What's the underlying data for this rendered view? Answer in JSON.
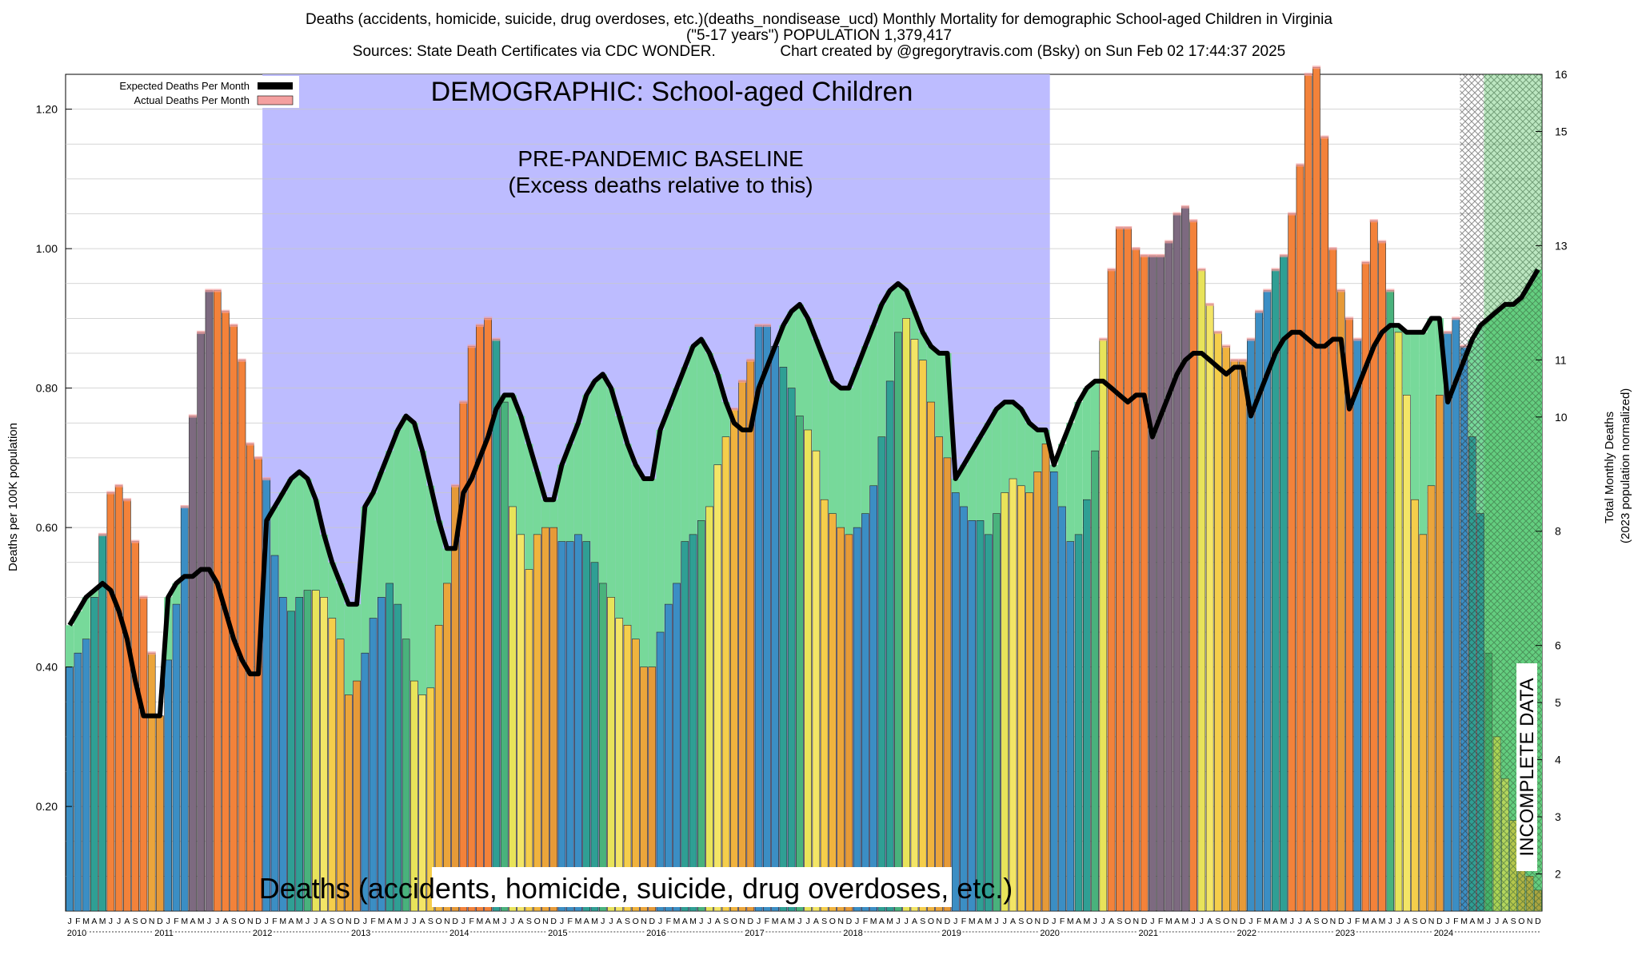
{
  "header": {
    "line1": "Deaths (accidents, homicide, suicide, drug overdoses, etc.)(deaths_nondisease_ucd) Monthly Mortality for demographic School-aged Children in Virginia",
    "line2": "(\"5-17 years\") POPULATION 1,379,417",
    "line3_left": "Sources: State Death Certificates via CDC WONDER.",
    "line3_right": "Chart created by @gregorytravis.com (Bsky) on Sun Feb 02 17:44:37 2025"
  },
  "chart_data": {
    "type": "bar",
    "title": "Deaths (accidents, homicide, suicide, drug overdoses, etc.)(deaths_nondisease_ucd) Monthly Mortality for demographic School-aged Children in Virginia",
    "ylabel": "Deaths per 100K population",
    "y2label": "Total Monthly Deaths",
    "y2label_sub": "(2023 population normalized)",
    "ylim": [
      0.05,
      1.25
    ],
    "y2lim": [
      1.35,
      16.0
    ],
    "y_ticks": [
      "0.20",
      "0.40",
      "0.60",
      "0.80",
      "1.00",
      "1.20"
    ],
    "y_tick_values": [
      0.2,
      0.4,
      0.6,
      0.8,
      1.0,
      1.2
    ],
    "y2_ticks": [
      "2",
      "3",
      "4",
      "5",
      "6",
      "8",
      "10",
      "11",
      "13",
      "15",
      "16"
    ],
    "y2_tick_values": [
      2,
      3,
      4,
      5,
      6,
      8,
      10,
      11,
      13,
      15,
      16
    ],
    "month_letters": [
      "J",
      "F",
      "M",
      "A",
      "M",
      "J",
      "J",
      "A",
      "S",
      "O",
      "N",
      "D"
    ],
    "years": [
      "2010",
      "2011",
      "2012",
      "2013",
      "2014",
      "2015",
      "2016",
      "2017",
      "2018",
      "2019",
      "2020",
      "2021",
      "2022",
      "2023",
      "2024"
    ],
    "legend": [
      "Expected Deaths Per Month",
      "Actual Deaths Per Month"
    ],
    "baseline_label": "DEMOGRAPHIC: School-aged Children",
    "baseline_title": "PRE-PANDEMIC BASELINE",
    "baseline_sub": "(Excess deaths relative to this)",
    "baseline_years": [
      "2012",
      "2019"
    ],
    "incomplete_label": "INCOMPLETE DATA",
    "incomplete_from": "2024-03",
    "bottom_caption": "Deaths (accidents, homicide, suicide, drug overdoses, etc.)",
    "actual": [
      0.4,
      0.42,
      0.44,
      0.5,
      0.59,
      0.65,
      0.66,
      0.64,
      0.58,
      0.5,
      0.42,
      0.33,
      0.41,
      0.49,
      0.63,
      0.76,
      0.88,
      0.94,
      0.94,
      0.91,
      0.89,
      0.84,
      0.72,
      0.7,
      0.67,
      0.56,
      0.5,
      0.48,
      0.5,
      0.51,
      0.51,
      0.5,
      0.47,
      0.44,
      0.36,
      0.38,
      0.42,
      0.47,
      0.5,
      0.52,
      0.49,
      0.44,
      0.38,
      0.36,
      0.37,
      0.46,
      0.52,
      0.66,
      0.78,
      0.86,
      0.89,
      0.9,
      0.87,
      0.78,
      0.63,
      0.59,
      0.54,
      0.59,
      0.6,
      0.6,
      0.58,
      0.58,
      0.59,
      0.58,
      0.55,
      0.52,
      0.5,
      0.47,
      0.46,
      0.44,
      0.4,
      0.4,
      0.45,
      0.49,
      0.52,
      0.58,
      0.59,
      0.61,
      0.63,
      0.69,
      0.73,
      0.77,
      0.81,
      0.84,
      0.89,
      0.89,
      0.86,
      0.83,
      0.8,
      0.76,
      0.74,
      0.71,
      0.64,
      0.62,
      0.6,
      0.59,
      0.6,
      0.62,
      0.66,
      0.73,
      0.81,
      0.88,
      0.9,
      0.87,
      0.84,
      0.78,
      0.73,
      0.7,
      0.65,
      0.63,
      0.61,
      0.61,
      0.59,
      0.62,
      0.65,
      0.67,
      0.66,
      0.65,
      0.68,
      0.72,
      0.68,
      0.63,
      0.58,
      0.59,
      0.64,
      0.71,
      0.87,
      0.97,
      1.03,
      1.03,
      1.0,
      0.99,
      0.99,
      0.99,
      1.01,
      1.05,
      1.06,
      1.04,
      0.97,
      0.92,
      0.88,
      0.86,
      0.84,
      0.84,
      0.87,
      0.91,
      0.94,
      0.97,
      0.99,
      1.05,
      1.12,
      1.25,
      1.26,
      1.16,
      1.0,
      0.94,
      0.9,
      0.87,
      0.98,
      1.04,
      1.01,
      0.94,
      0.88,
      0.79,
      0.64,
      0.59,
      0.66,
      0.79,
      0.88,
      0.9,
      0.86,
      0.73,
      0.62,
      0.42,
      0.3,
      0.24,
      0.18,
      0.14,
      0.1,
      0.08
    ],
    "expected": [
      0.46,
      0.48,
      0.5,
      0.51,
      0.52,
      0.51,
      0.48,
      0.44,
      0.38,
      0.33,
      0.33,
      0.33,
      0.5,
      0.52,
      0.53,
      0.53,
      0.54,
      0.54,
      0.52,
      0.48,
      0.44,
      0.41,
      0.39,
      0.39,
      0.61,
      0.63,
      0.65,
      0.67,
      0.68,
      0.67,
      0.64,
      0.59,
      0.55,
      0.52,
      0.49,
      0.49,
      0.63,
      0.65,
      0.68,
      0.71,
      0.74,
      0.76,
      0.75,
      0.71,
      0.66,
      0.61,
      0.57,
      0.57,
      0.65,
      0.67,
      0.7,
      0.73,
      0.77,
      0.79,
      0.79,
      0.76,
      0.72,
      0.68,
      0.64,
      0.64,
      0.69,
      0.72,
      0.75,
      0.79,
      0.81,
      0.82,
      0.8,
      0.76,
      0.72,
      0.69,
      0.67,
      0.67,
      0.74,
      0.77,
      0.8,
      0.83,
      0.86,
      0.87,
      0.85,
      0.82,
      0.78,
      0.75,
      0.74,
      0.74,
      0.8,
      0.83,
      0.86,
      0.89,
      0.91,
      0.92,
      0.9,
      0.87,
      0.84,
      0.81,
      0.8,
      0.8,
      0.83,
      0.86,
      0.89,
      0.92,
      0.94,
      0.95,
      0.94,
      0.91,
      0.88,
      0.86,
      0.85,
      0.85,
      0.67,
      0.69,
      0.71,
      0.73,
      0.75,
      0.77,
      0.78,
      0.78,
      0.77,
      0.75,
      0.74,
      0.74,
      0.69,
      0.72,
      0.75,
      0.78,
      0.8,
      0.81,
      0.81,
      0.8,
      0.79,
      0.78,
      0.79,
      0.79,
      0.73,
      0.76,
      0.79,
      0.82,
      0.84,
      0.85,
      0.85,
      0.84,
      0.83,
      0.82,
      0.83,
      0.83,
      0.76,
      0.79,
      0.82,
      0.85,
      0.87,
      0.88,
      0.88,
      0.87,
      0.86,
      0.86,
      0.87,
      0.87,
      0.77,
      0.8,
      0.83,
      0.86,
      0.88,
      0.89,
      0.89,
      0.88,
      0.88,
      0.88,
      0.9,
      0.9,
      0.78,
      0.81,
      0.84,
      0.87,
      0.89,
      0.9,
      0.91,
      0.92,
      0.92,
      0.93,
      0.95,
      0.97
    ]
  }
}
